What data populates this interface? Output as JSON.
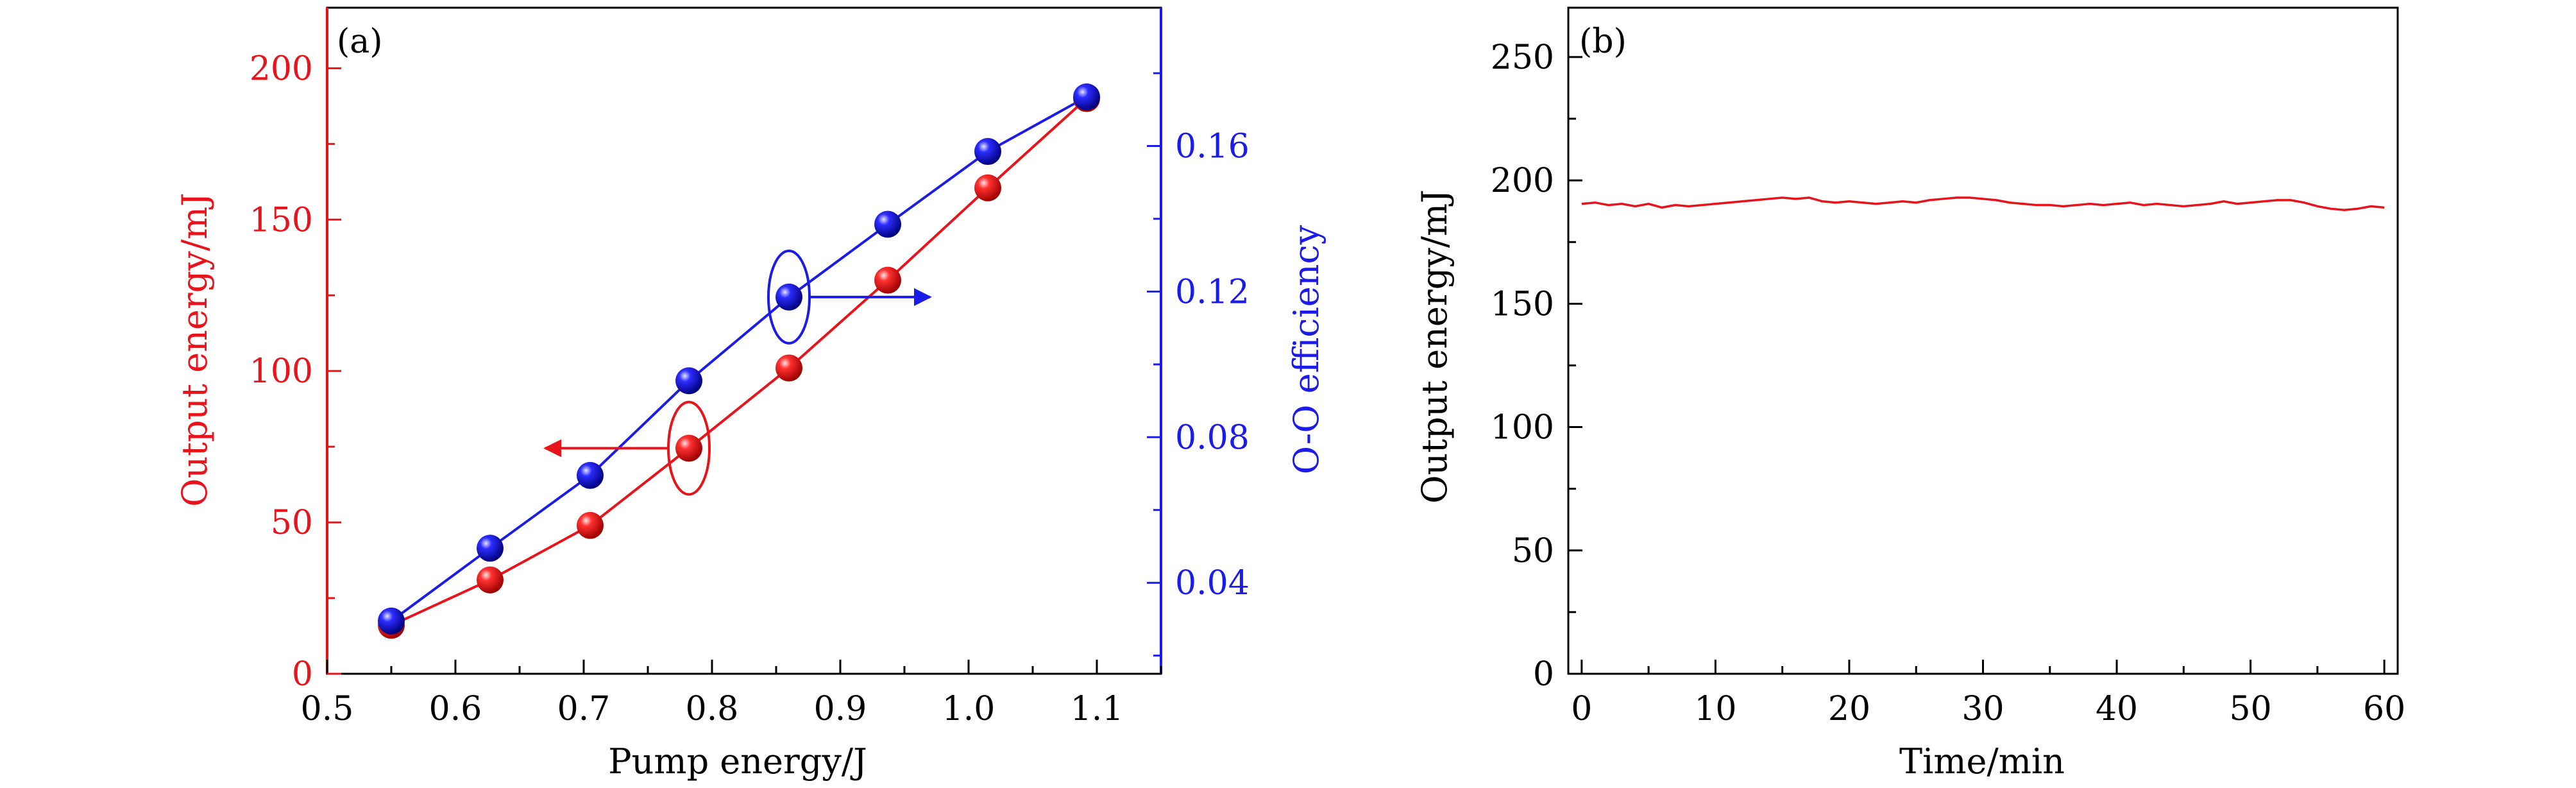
{
  "chart_data": [
    {
      "panel_label": "(a)",
      "type": "line",
      "xlabel": "Pump energy/J",
      "ylabel_left": "Output energy/mJ",
      "ylabel_right": "O-O efficiency",
      "xlim": [
        0.5,
        1.15
      ],
      "ylim_left": [
        0,
        220
      ],
      "ylim_right": [
        0.015,
        0.198
      ],
      "x_ticks": [
        "0.5",
        "0.6",
        "0.7",
        "0.8",
        "0.9",
        "1.0",
        "1.1"
      ],
      "y_left_ticks": [
        "0",
        "50",
        "100",
        "150",
        "200"
      ],
      "y_right_ticks": [
        "0.04",
        "0.08",
        "0.12",
        "0.16"
      ],
      "colors": {
        "left": "#e8141c",
        "right": "#1c1ce8"
      },
      "series": [
        {
          "axis": "left",
          "x": [
            0.55,
            0.627,
            0.705,
            0.782,
            0.86,
            0.937,
            1.015,
            1.092
          ],
          "values": [
            16,
            31,
            49,
            74.5,
            101,
            130,
            160.5,
            190
          ]
        },
        {
          "axis": "right",
          "x": [
            0.55,
            0.627,
            0.705,
            0.782,
            0.86,
            0.937,
            1.015,
            1.092
          ],
          "values": [
            0.0295,
            0.0495,
            0.0695,
            0.0955,
            0.1185,
            0.1385,
            0.1585,
            0.1735
          ]
        }
      ]
    },
    {
      "panel_label": "(b)",
      "type": "line",
      "xlabel": "Time/min",
      "ylabel": "Output energy/mJ",
      "xlim": [
        -1,
        61
      ],
      "ylim": [
        0,
        270
      ],
      "x_ticks": [
        "0",
        "10",
        "20",
        "30",
        "40",
        "50",
        "60"
      ],
      "y_ticks": [
        "0",
        "50",
        "100",
        "150",
        "200",
        "250"
      ],
      "color": "#e8141c",
      "series": [
        {
          "x": [
            0,
            1,
            2,
            3,
            4,
            5,
            6,
            7,
            8,
            9,
            10,
            11,
            12,
            13,
            14,
            15,
            16,
            17,
            18,
            19,
            20,
            21,
            22,
            23,
            24,
            25,
            26,
            27,
            28,
            29,
            30,
            31,
            32,
            33,
            34,
            35,
            36,
            37,
            38,
            39,
            40,
            41,
            42,
            43,
            44,
            45,
            46,
            47,
            48,
            49,
            50,
            51,
            52,
            53,
            54,
            55,
            56,
            57,
            58,
            59,
            60
          ],
          "values": [
            190.5,
            191,
            190,
            190.5,
            189.5,
            190.5,
            189,
            190,
            189.5,
            190,
            190.5,
            191,
            191.5,
            192,
            192.5,
            193,
            192.5,
            193,
            191.5,
            191,
            191.5,
            191,
            190.5,
            191,
            191.5,
            191,
            192,
            192.5,
            193,
            193,
            192.5,
            192,
            191,
            190.5,
            190,
            190,
            189.5,
            190,
            190.5,
            190,
            190.5,
            191,
            190,
            190.5,
            190,
            189.5,
            190,
            190.5,
            191.5,
            190.5,
            191,
            191.5,
            192,
            192,
            191,
            189.5,
            188.5,
            188,
            188.5,
            189.5,
            189
          ]
        }
      ]
    }
  ]
}
